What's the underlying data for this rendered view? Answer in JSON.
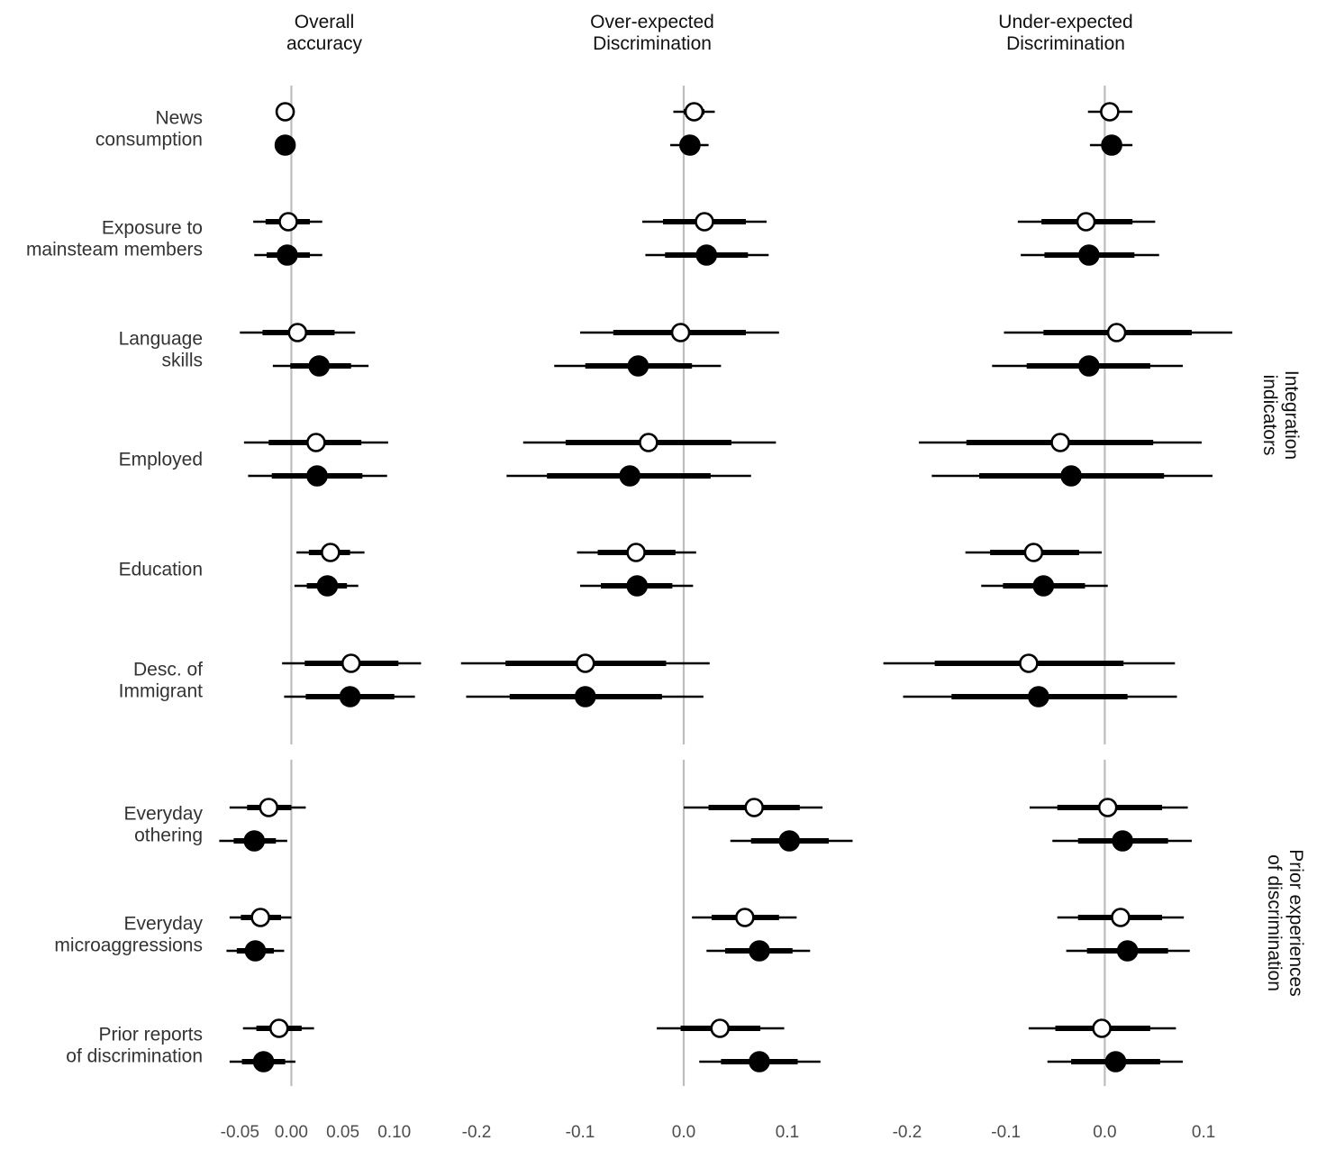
{
  "chart_data": {
    "type": "coefficient-plot",
    "panels": [
      {
        "title": [
          "Overall",
          "accuracy"
        ],
        "xlim": [
          -0.08,
          0.13
        ],
        "ticks": [
          -0.05,
          0.0,
          0.05,
          0.1
        ],
        "tick_labels": [
          "-0.05",
          "0.00",
          "0.05",
          "0.10"
        ]
      },
      {
        "title": [
          "Over-expected",
          "Discrimination"
        ],
        "xlim": [
          -0.22,
          0.18
        ],
        "ticks": [
          -0.2,
          -0.1,
          0.0,
          0.1
        ],
        "tick_labels": [
          "-0.2",
          "-0.1",
          "0.0",
          "0.1"
        ]
      },
      {
        "title": [
          "Under-expected",
          "Discrimination"
        ],
        "xlim": [
          -0.22,
          0.15
        ],
        "ticks": [
          -0.2,
          -0.1,
          0.0,
          0.1
        ],
        "tick_labels": [
          "-0.2",
          "-0.1",
          "0.0",
          "0.1"
        ]
      }
    ],
    "facets": [
      {
        "label": [
          "Integration",
          "indicators"
        ],
        "rows": [
          0,
          1,
          2,
          3,
          4,
          5
        ]
      },
      {
        "label": [
          "Prior experiences",
          "of discrimination"
        ],
        "rows": [
          6,
          7,
          8
        ]
      }
    ],
    "rows": [
      {
        "label": [
          "News",
          "consumption"
        ],
        "estimates": [
          [
            {
              "est": -0.006,
              "ci66": [
                -0.007,
                -0.005
              ],
              "ci95": [
                -0.015,
                0.003
              ]
            },
            {
              "est": -0.006,
              "ci66": [
                -0.007,
                -0.005
              ],
              "ci95": [
                -0.014,
                0.002
              ]
            }
          ],
          [
            {
              "est": 0.01,
              "ci66": [
                0.0,
                0.02
              ],
              "ci95": [
                -0.01,
                0.03
              ]
            },
            {
              "est": 0.006,
              "ci66": [
                -0.004,
                0.016
              ],
              "ci95": [
                -0.013,
                0.024
              ]
            }
          ],
          [
            {
              "est": 0.005,
              "ci66": [
                -0.003,
                0.013
              ],
              "ci95": [
                -0.017,
                0.028
              ]
            },
            {
              "est": 0.007,
              "ci66": [
                -0.001,
                0.015
              ],
              "ci95": [
                -0.015,
                0.028
              ]
            }
          ]
        ]
      },
      {
        "label": [
          "Exposure to",
          "mainsteam members"
        ],
        "estimates": [
          [
            {
              "est": -0.003,
              "ci66": [
                -0.025,
                0.018
              ],
              "ci95": [
                -0.037,
                0.03
              ]
            },
            {
              "est": -0.004,
              "ci66": [
                -0.024,
                0.018
              ],
              "ci95": [
                -0.036,
                0.03
              ]
            }
          ],
          [
            {
              "est": 0.02,
              "ci66": [
                -0.02,
                0.06
              ],
              "ci95": [
                -0.04,
                0.08
              ]
            },
            {
              "est": 0.022,
              "ci66": [
                -0.018,
                0.062
              ],
              "ci95": [
                -0.037,
                0.082
              ]
            }
          ],
          [
            {
              "est": -0.019,
              "ci66": [
                -0.064,
                0.028
              ],
              "ci95": [
                -0.088,
                0.051
              ]
            },
            {
              "est": -0.016,
              "ci66": [
                -0.061,
                0.03
              ],
              "ci95": [
                -0.085,
                0.055
              ]
            }
          ]
        ]
      },
      {
        "label": [
          "Language",
          "skills"
        ],
        "estimates": [
          [
            {
              "est": 0.006,
              "ci66": [
                -0.028,
                0.042
              ],
              "ci95": [
                -0.05,
                0.062
              ]
            },
            {
              "est": 0.027,
              "ci66": [
                -0.001,
                0.058
              ],
              "ci95": [
                -0.018,
                0.075
              ]
            }
          ],
          [
            {
              "est": -0.003,
              "ci66": [
                -0.068,
                0.06
              ],
              "ci95": [
                -0.1,
                0.092
              ]
            },
            {
              "est": -0.044,
              "ci66": [
                -0.095,
                0.008
              ],
              "ci95": [
                -0.125,
                0.036
              ]
            }
          ],
          [
            {
              "est": 0.012,
              "ci66": [
                -0.062,
                0.088
              ],
              "ci95": [
                -0.102,
                0.129
              ]
            },
            {
              "est": -0.016,
              "ci66": [
                -0.079,
                0.046
              ],
              "ci95": [
                -0.114,
                0.079
              ]
            }
          ]
        ]
      },
      {
        "label": [
          "Employed"
        ],
        "estimates": [
          [
            {
              "est": 0.024,
              "ci66": [
                -0.022,
                0.068
              ],
              "ci95": [
                -0.046,
                0.094
              ]
            },
            {
              "est": 0.025,
              "ci66": [
                -0.019,
                0.069
              ],
              "ci95": [
                -0.042,
                0.093
              ]
            }
          ],
          [
            {
              "est": -0.034,
              "ci66": [
                -0.114,
                0.046
              ],
              "ci95": [
                -0.155,
                0.089
              ]
            },
            {
              "est": -0.052,
              "ci66": [
                -0.132,
                0.026
              ],
              "ci95": [
                -0.171,
                0.065
              ]
            }
          ],
          [
            {
              "est": -0.045,
              "ci66": [
                -0.14,
                0.049
              ],
              "ci95": [
                -0.188,
                0.098
              ]
            },
            {
              "est": -0.034,
              "ci66": [
                -0.127,
                0.06
              ],
              "ci95": [
                -0.175,
                0.109
              ]
            }
          ]
        ]
      },
      {
        "label": [
          "Education"
        ],
        "estimates": [
          [
            {
              "est": 0.038,
              "ci66": [
                0.017,
                0.057
              ],
              "ci95": [
                0.005,
                0.071
              ]
            },
            {
              "est": 0.035,
              "ci66": [
                0.015,
                0.054
              ],
              "ci95": [
                0.003,
                0.065
              ]
            }
          ],
          [
            {
              "est": -0.046,
              "ci66": [
                -0.083,
                -0.008
              ],
              "ci95": [
                -0.103,
                0.012
              ]
            },
            {
              "est": -0.045,
              "ci66": [
                -0.08,
                -0.011
              ],
              "ci95": [
                -0.1,
                0.009
              ]
            }
          ],
          [
            {
              "est": -0.072,
              "ci66": [
                -0.116,
                -0.026
              ],
              "ci95": [
                -0.141,
                -0.003
              ]
            },
            {
              "est": -0.062,
              "ci66": [
                -0.103,
                -0.02
              ],
              "ci95": [
                -0.125,
                0.003
              ]
            }
          ]
        ]
      },
      {
        "label": [
          "Desc. of",
          "Immigrant"
        ],
        "estimates": [
          [
            {
              "est": 0.058,
              "ci66": [
                0.013,
                0.104
              ],
              "ci95": [
                -0.009,
                0.126
              ]
            },
            {
              "est": 0.057,
              "ci66": [
                0.014,
                0.1
              ],
              "ci95": [
                -0.007,
                0.12
              ]
            }
          ],
          [
            {
              "est": -0.095,
              "ci66": [
                -0.172,
                -0.017
              ],
              "ci95": [
                -0.215,
                0.025
              ]
            },
            {
              "est": -0.095,
              "ci66": [
                -0.168,
                -0.021
              ],
              "ci95": [
                -0.21,
                0.019
              ]
            }
          ],
          [
            {
              "est": -0.077,
              "ci66": [
                -0.172,
                0.019
              ],
              "ci95": [
                -0.224,
                0.071
              ]
            },
            {
              "est": -0.067,
              "ci66": [
                -0.155,
                0.023
              ],
              "ci95": [
                -0.204,
                0.073
              ]
            }
          ]
        ]
      },
      {
        "label": [
          "Everyday",
          "othering"
        ],
        "estimates": [
          [
            {
              "est": -0.022,
              "ci66": [
                -0.043,
                0.0
              ],
              "ci95": [
                -0.06,
                0.014
              ]
            },
            {
              "est": -0.036,
              "ci66": [
                -0.056,
                -0.015
              ],
              "ci95": [
                -0.07,
                -0.004
              ]
            }
          ],
          [
            {
              "est": 0.068,
              "ci66": [
                0.024,
                0.112
              ],
              "ci95": [
                0.0,
                0.134
              ]
            },
            {
              "est": 0.102,
              "ci66": [
                0.065,
                0.14
              ],
              "ci95": [
                0.045,
                0.163
              ]
            }
          ],
          [
            {
              "est": 0.003,
              "ci66": [
                -0.048,
                0.058
              ],
              "ci95": [
                -0.076,
                0.084
              ]
            },
            {
              "est": 0.018,
              "ci66": [
                -0.027,
                0.064
              ],
              "ci95": [
                -0.053,
                0.088
              ]
            }
          ]
        ]
      },
      {
        "label": [
          "Everyday",
          "microaggressions"
        ],
        "estimates": [
          [
            {
              "est": -0.03,
              "ci66": [
                -0.049,
                -0.01
              ],
              "ci95": [
                -0.06,
                0.0
              ]
            },
            {
              "est": -0.035,
              "ci66": [
                -0.053,
                -0.017
              ],
              "ci95": [
                -0.063,
                -0.007
              ]
            }
          ],
          [
            {
              "est": 0.059,
              "ci66": [
                0.027,
                0.092
              ],
              "ci95": [
                0.008,
                0.109
              ]
            },
            {
              "est": 0.073,
              "ci66": [
                0.04,
                0.105
              ],
              "ci95": [
                0.022,
                0.122
              ]
            }
          ],
          [
            {
              "est": 0.016,
              "ci66": [
                -0.027,
                0.058
              ],
              "ci95": [
                -0.048,
                0.08
              ]
            },
            {
              "est": 0.023,
              "ci66": [
                -0.018,
                0.064
              ],
              "ci95": [
                -0.039,
                0.086
              ]
            }
          ]
        ]
      },
      {
        "label": [
          "Prior reports",
          "of discrimination"
        ],
        "estimates": [
          [
            {
              "est": -0.012,
              "ci66": [
                -0.034,
                0.01
              ],
              "ci95": [
                -0.047,
                0.022
              ]
            },
            {
              "est": -0.027,
              "ci66": [
                -0.048,
                -0.006
              ],
              "ci95": [
                -0.06,
                0.004
              ]
            }
          ],
          [
            {
              "est": 0.035,
              "ci66": [
                -0.003,
                0.074
              ],
              "ci95": [
                -0.026,
                0.097
              ]
            },
            {
              "est": 0.073,
              "ci66": [
                0.036,
                0.11
              ],
              "ci95": [
                0.015,
                0.132
              ]
            }
          ],
          [
            {
              "est": -0.003,
              "ci66": [
                -0.05,
                0.046
              ],
              "ci95": [
                -0.077,
                0.072
              ]
            },
            {
              "est": 0.011,
              "ci66": [
                -0.034,
                0.056
              ],
              "ci95": [
                -0.058,
                0.079
              ]
            }
          ]
        ]
      }
    ],
    "series": [
      {
        "fill": "#ffffff",
        "stroke": "#000000"
      },
      {
        "fill": "#000000",
        "stroke": "#000000"
      }
    ],
    "colors": {
      "zero_line": "#bdbdbd",
      "marks": "#000000"
    },
    "grid": false
  }
}
